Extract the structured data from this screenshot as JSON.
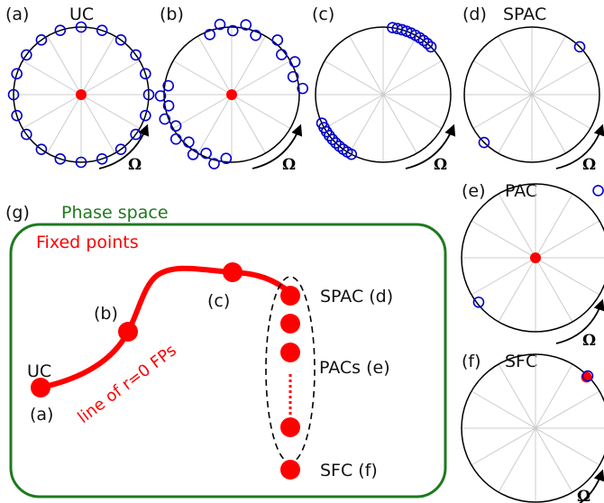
{
  "panels": [
    {
      "letter": "(a)",
      "title": "UC"
    },
    {
      "letter": "(b)",
      "title": ""
    },
    {
      "letter": "(c)",
      "title": ""
    },
    {
      "letter": "(d)",
      "title": "SPAC"
    },
    {
      "letter": "(e)",
      "title": "PAC"
    },
    {
      "letter": "(f)",
      "title": "SFC"
    }
  ],
  "omega": "Ω",
  "phase_space": {
    "letter": "(g)",
    "title": "Phase space",
    "subtitle": "Fixed points",
    "curve_label": "line of r=0 FPs",
    "labels": {
      "uc": "UC",
      "a": "(a)",
      "b": "(b)",
      "c": "(c)",
      "spac": "SPAC (d)",
      "pacs": "PACs (e)",
      "sfc": "SFC (f)"
    }
  },
  "colors": {
    "oscillator": "#0000cc",
    "center": "#ff0000",
    "frame": "#1e7a1e",
    "curve": "#ff0000"
  }
}
